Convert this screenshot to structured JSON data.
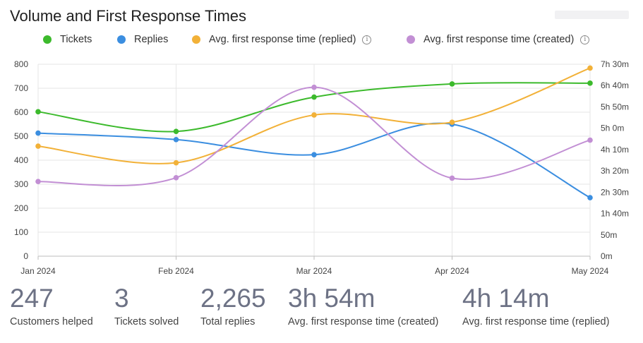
{
  "title": "Volume and First Response Times",
  "legend": [
    {
      "label": "Tickets",
      "color": "#3cba2c",
      "info": false
    },
    {
      "label": "Replies",
      "color": "#3b8ee0",
      "info": false
    },
    {
      "label": "Avg. first response time (replied)",
      "color": "#f2b138",
      "info": true
    },
    {
      "label": "Avg. first response time (created)",
      "color": "#c28fd4",
      "info": true
    }
  ],
  "chart_data": {
    "type": "line",
    "title": "Volume and First Response Times",
    "categories": [
      "Jan 2024",
      "Feb 2024",
      "Mar 2024",
      "Apr 2024",
      "May 2024"
    ],
    "y_left": {
      "min": 0,
      "max": 800,
      "ticks": [
        "0",
        "100",
        "200",
        "300",
        "400",
        "500",
        "600",
        "700",
        "800"
      ]
    },
    "y_right": {
      "min_minutes": 0,
      "max_minutes": 450,
      "ticks": [
        "0m",
        "50m",
        "1h 40m",
        "2h 30m",
        "3h 20m",
        "4h 10m",
        "5h 0m",
        "5h 50m",
        "6h 40m",
        "7h 30m"
      ]
    },
    "series": [
      {
        "name": "Tickets",
        "axis": "left",
        "color": "#3cba2c",
        "values": [
          602,
          520,
          663,
          718,
          721
        ]
      },
      {
        "name": "Replies",
        "axis": "left",
        "color": "#3b8ee0",
        "values": [
          513,
          486,
          423,
          550,
          244
        ]
      },
      {
        "name": "Avg. first response time (replied)",
        "axis": "right",
        "unit": "minutes",
        "color": "#f2b138",
        "values": [
          258,
          219,
          331,
          314,
          441
        ]
      },
      {
        "name": "Avg. first response time (created)",
        "axis": "right",
        "unit": "minutes",
        "color": "#c28fd4",
        "values": [
          175,
          184,
          396,
          183,
          272
        ]
      }
    ],
    "grid": true,
    "legend_position": "top"
  },
  "stats": [
    {
      "value": "247",
      "label": "Customers helped"
    },
    {
      "value": "3",
      "label": "Tickets solved"
    },
    {
      "value": "2,265",
      "label": "Total replies"
    },
    {
      "value": "3h 54m",
      "label": "Avg. first response time (created)"
    },
    {
      "value": "4h 14m",
      "label": "Avg. first response time (replied)"
    }
  ]
}
